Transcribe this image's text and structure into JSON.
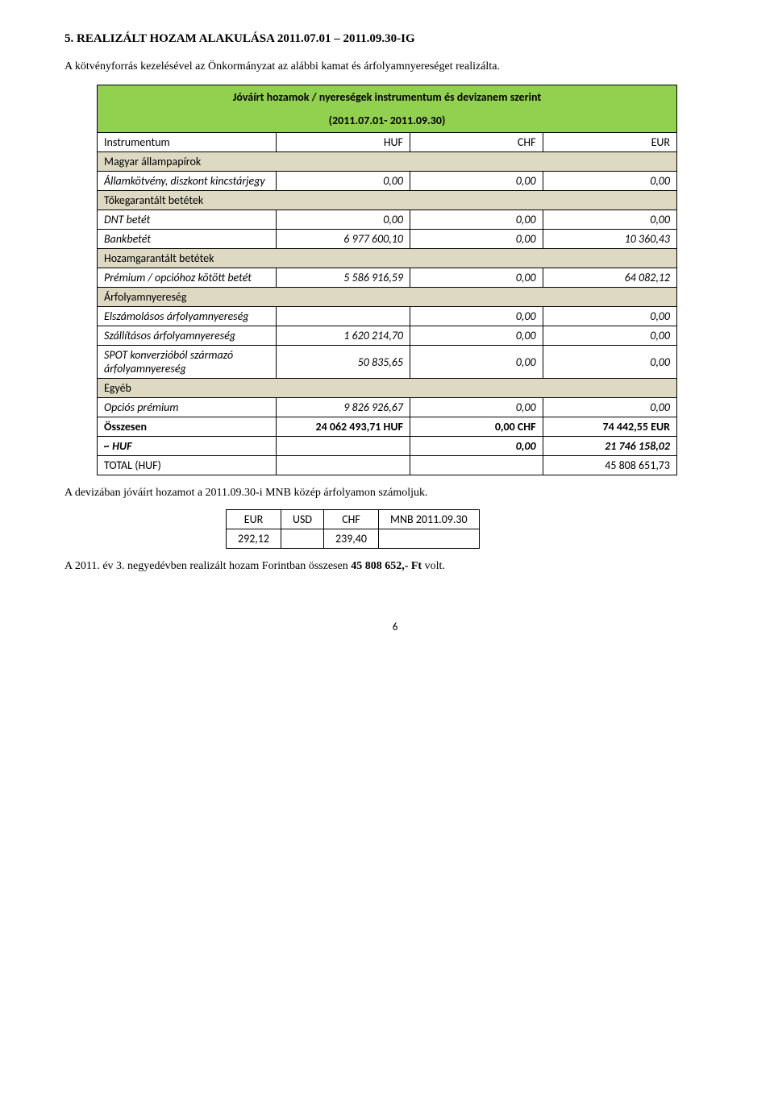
{
  "heading": "5.   REALIZÁLT HOZAM ALAKULÁSA 2011.07.01 – 2011.09.30-IG",
  "intro": "A kötvényforrás kezelésével az Önkormányzat az alábbi kamat és árfolyamnyereséget realizálta.",
  "table": {
    "title1": "Jóváírt hozamok / nyereségek instrumentum és devizanem szerint",
    "title2": "(2011.07.01- 2011.09.30)",
    "header": {
      "c1": "Instrumentum",
      "c2": "HUF",
      "c3": "CHF",
      "c4": "EUR"
    },
    "rows": [
      {
        "type": "section",
        "label": "Magyar állampapírok"
      },
      {
        "type": "data",
        "italic": true,
        "label": "Államkötvény, diszkont kincstárjegy",
        "huf": "0,00",
        "chf": "0,00",
        "eur": "0,00"
      },
      {
        "type": "section",
        "label": "Tőkegarantált betétek"
      },
      {
        "type": "data",
        "italic": true,
        "label": "DNT betét",
        "huf": "0,00",
        "chf": "0,00",
        "eur": "0,00"
      },
      {
        "type": "data",
        "italic": true,
        "label": "Bankbetét",
        "huf": "6 977 600,10",
        "chf": "0,00",
        "eur": "10 360,43"
      },
      {
        "type": "section",
        "label": "Hozamgarantált betétek"
      },
      {
        "type": "data",
        "italic": true,
        "label": "Prémium / opcióhoz kötött betét",
        "huf": "5 586 916,59",
        "chf": "0,00",
        "eur": "64 082,12"
      },
      {
        "type": "section",
        "label": "Árfolyamnyereség"
      },
      {
        "type": "data",
        "italic": true,
        "label": "Elszámolásos árfolyamnyereség",
        "huf": "",
        "chf": "0,00",
        "eur": "0,00"
      },
      {
        "type": "data",
        "italic": true,
        "label": "Szállításos árfolyamnyereség",
        "huf": "1 620 214,70",
        "chf": "0,00",
        "eur": "0,00"
      },
      {
        "type": "data",
        "italic": true,
        "label": "SPOT konverzióból származó árfolyamnyereség",
        "huf": "50 835,65",
        "chf": "0,00",
        "eur": "0,00"
      },
      {
        "type": "section",
        "label": "Egyéb"
      },
      {
        "type": "data",
        "italic": true,
        "label": "Opciós prémium",
        "huf": "9 826 926,67",
        "chf": "0,00",
        "eur": "0,00"
      },
      {
        "type": "total",
        "bold": true,
        "label": "Összesen",
        "huf": "24 062 493,71 HUF",
        "chf": "0,00 CHF",
        "eur": "74 442,55 EUR"
      },
      {
        "type": "data",
        "italic": true,
        "bold": true,
        "label": "~ HUF",
        "huf": "",
        "chf": "0,00",
        "eur": "21 746 158,02"
      },
      {
        "type": "data",
        "label": "TOTAL (HUF)",
        "huf": "",
        "chf": "",
        "eur": "45 808 651,73"
      }
    ]
  },
  "note": "A devizában jóváírt hozamot a 2011.09.30-i MNB közép árfolyamon számoljuk.",
  "fx": {
    "head": {
      "eur": "EUR",
      "usd": "USD",
      "chf": "CHF",
      "mnb": "MNB 2011.09.30"
    },
    "vals": {
      "eur": "292,12",
      "usd": "",
      "chf": "239,40",
      "mnb": ""
    }
  },
  "final_prefix": "A 2011. év 3. negyedévben realizált hozam Forintban összesen ",
  "final_bold": "45 808 652,- Ft",
  "final_suffix": " volt.",
  "page": "6"
}
